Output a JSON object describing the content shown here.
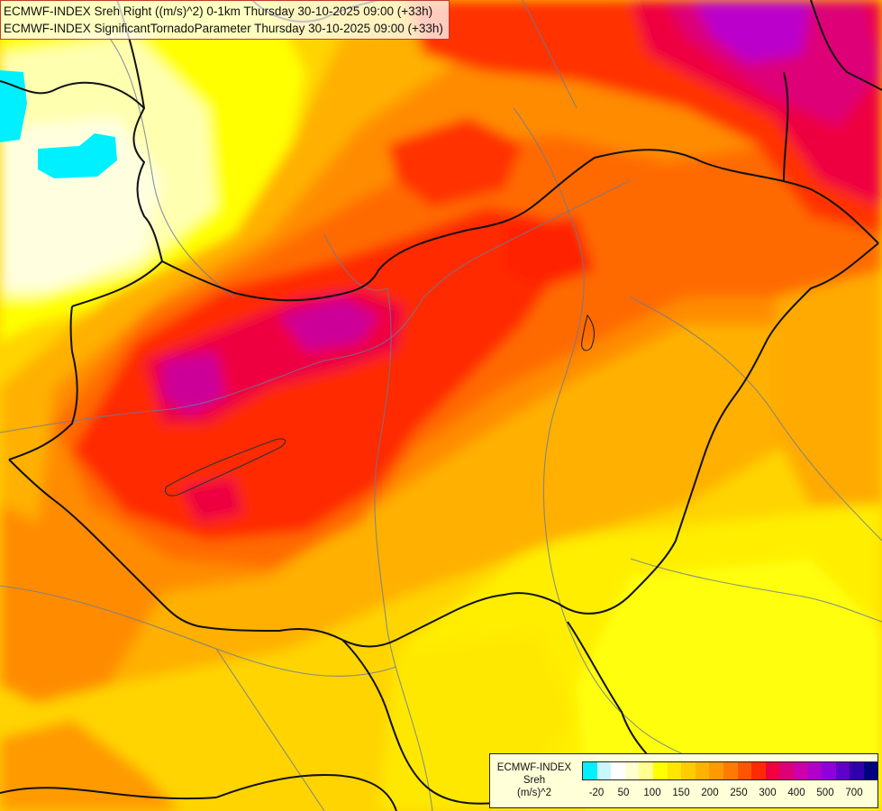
{
  "title": {
    "line1": "ECMWF-INDEX Sreh Right ((m/s)^2) 0-1km Thursday 30-10-2025 09:00 (+33h)",
    "line2": "ECMWF-INDEX SignificantTornadoParameter Thursday 30-10-2025 09:00 (+33h)"
  },
  "legend": {
    "line1": "ECMWF-INDEX",
    "line2": "Sreh",
    "line3": "(m/s)^2",
    "colors": [
      "#00f0ff",
      "#c8f8ff",
      "#ffffff",
      "#ffffd0",
      "#ffff90",
      "#ffff00",
      "#ffe600",
      "#ffcc00",
      "#ffb300",
      "#ff9900",
      "#ff7b00",
      "#ff5500",
      "#ff2b00",
      "#f00040",
      "#dd0077",
      "#cc00aa",
      "#b000cc",
      "#9000dd",
      "#6000c8",
      "#3000aa",
      "#000080"
    ],
    "ticks": [
      "-20",
      "50",
      "100",
      "150",
      "200",
      "250",
      "300",
      "400",
      "500",
      "700"
    ]
  },
  "colors": {
    "cyan": "#00f0ff",
    "pale_yellow": "#ffffd0",
    "yellow": "#ffff00",
    "gold": "#ffcc00",
    "orange": "#ff9900",
    "dark_orange": "#ff6600",
    "red": "#ff2200",
    "crimson": "#ee0044",
    "magenta": "#cc0099",
    "purple": "#bb00cc",
    "border": "#111111",
    "river": "#6a7a9a"
  }
}
